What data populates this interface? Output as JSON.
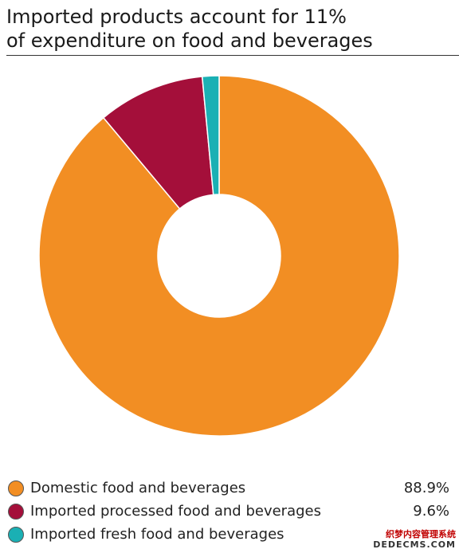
{
  "title_line1": "Imported products account for 11%",
  "title_line2": "of expenditure on food and beverages",
  "chart_data": {
    "type": "pie",
    "donut": true,
    "title": "Imported products account for 11% of expenditure on food and beverages",
    "series": [
      {
        "name": "Domestic food and beverages",
        "value": 88.9,
        "label": "88.9%",
        "color": "#f28e23"
      },
      {
        "name": "Imported processed food and beverages",
        "value": 9.6,
        "label": "9.6%",
        "color": "#a40f3a"
      },
      {
        "name": "Imported fresh food and beverages",
        "value": 1.5,
        "label": "",
        "color": "#1ab0b4"
      }
    ],
    "legend_position": "bottom"
  },
  "watermark": {
    "line1": "织梦内容管理系统",
    "line2": "DEDECMS.COM"
  }
}
